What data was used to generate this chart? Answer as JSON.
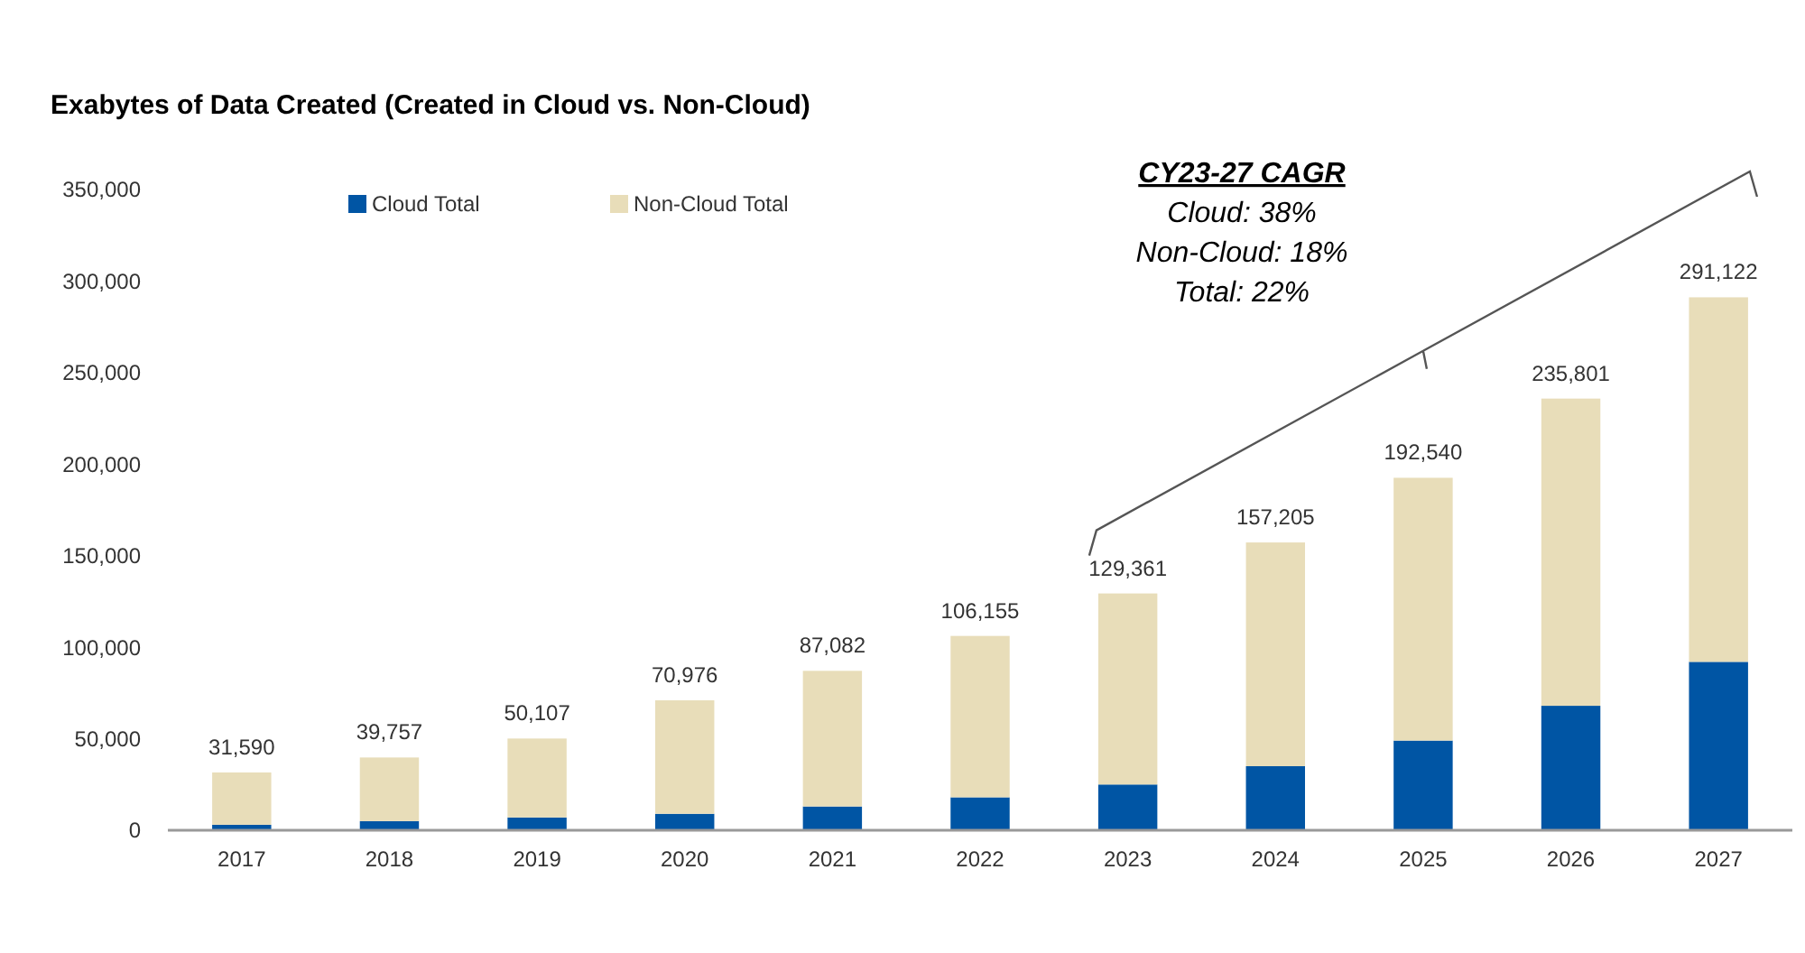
{
  "chart_data": {
    "type": "bar",
    "stacked": true,
    "title": "Exabytes of Data Created (Created in Cloud vs. Non-Cloud)",
    "categories": [
      "2017",
      "2018",
      "2019",
      "2020",
      "2021",
      "2022",
      "2023",
      "2024",
      "2025",
      "2026",
      "2027"
    ],
    "series": [
      {
        "name": "Cloud Total",
        "color": "#0055a4",
        "values": [
          3000,
          5000,
          7000,
          9000,
          13000,
          18000,
          25000,
          35000,
          49000,
          68000,
          92000
        ]
      },
      {
        "name": "Non-Cloud Total",
        "color": "#e8ddb9",
        "values": [
          28590,
          34757,
          43107,
          61976,
          74082,
          88155,
          104361,
          122205,
          143540,
          167801,
          199122
        ]
      }
    ],
    "totals": [
      "31,590",
      "39,757",
      "50,107",
      "70,976",
      "87,082",
      "106,155",
      "129,361",
      "157,205",
      "192,540",
      "235,801",
      "291,122"
    ],
    "ylim": [
      0,
      350000
    ],
    "yticks": [
      {
        "value": 0,
        "label": "0"
      },
      {
        "value": 50000,
        "label": "50,000"
      },
      {
        "value": 100000,
        "label": "100,000"
      },
      {
        "value": 150000,
        "label": "150,000"
      },
      {
        "value": 200000,
        "label": "200,000"
      },
      {
        "value": 250000,
        "label": "250,000"
      },
      {
        "value": 300000,
        "label": "300,000"
      },
      {
        "value": 350000,
        "label": "350,000"
      }
    ],
    "grid": false,
    "legend": "top left",
    "annotations": [
      "CY23-27 CAGR",
      "Cloud: 38%",
      "Non-Cloud: 18%",
      "Total: 22%"
    ]
  }
}
